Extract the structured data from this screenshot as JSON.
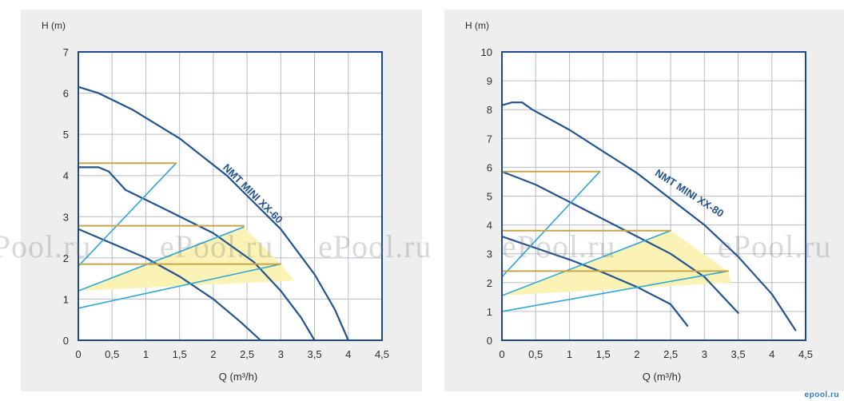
{
  "colors": {
    "frame": "#1f4b8e",
    "grid": "#b7bdc6",
    "curve": "#24548f",
    "efficiency": "#2ea6d6",
    "operating_line": "#c9a54a",
    "highlight": "#fbf3b5",
    "panel": "#eeeeef",
    "text": "#2d2d2d"
  },
  "watermark": "ePool.ru",
  "brand": "epool.ru",
  "chart_data": [
    {
      "type": "line",
      "title": "",
      "xlabel": "Q (m³/h)",
      "ylabel": "H (m)",
      "xlim": [
        0,
        4.5
      ],
      "ylim": [
        0,
        7
      ],
      "xticks": [
        "0",
        "0,5",
        "1",
        "1,5",
        "2",
        "2,5",
        "3",
        "3,5",
        "4",
        "4,5"
      ],
      "yticks": [
        "0",
        "1",
        "2",
        "3",
        "4",
        "5",
        "6",
        "7"
      ],
      "grid": true,
      "annotation": "NMT MINI XX-60",
      "series": [
        {
          "kind": "curve",
          "points": [
            [
              0,
              6.15
            ],
            [
              0.3,
              6.0
            ],
            [
              0.8,
              5.6
            ],
            [
              1.5,
              4.9
            ],
            [
              2.2,
              4.0
            ],
            [
              3.0,
              2.7
            ],
            [
              3.5,
              1.6
            ],
            [
              3.8,
              0.75
            ],
            [
              4.0,
              0.0
            ]
          ]
        },
        {
          "kind": "curve",
          "points": [
            [
              0,
              4.2
            ],
            [
              0.3,
              4.2
            ],
            [
              0.45,
              4.1
            ],
            [
              0.7,
              3.65
            ],
            [
              1.2,
              3.25
            ],
            [
              2.0,
              2.6
            ],
            [
              2.6,
              1.9
            ],
            [
              3.0,
              1.2
            ],
            [
              3.3,
              0.55
            ],
            [
              3.5,
              0.0
            ]
          ]
        },
        {
          "kind": "curve",
          "points": [
            [
              0,
              2.7
            ],
            [
              0.5,
              2.35
            ],
            [
              1.0,
              2.0
            ],
            [
              1.5,
              1.55
            ],
            [
              2.0,
              1.0
            ],
            [
              2.4,
              0.45
            ],
            [
              2.7,
              0.0
            ]
          ]
        },
        {
          "kind": "efficiency",
          "points": [
            [
              0,
              1.8
            ],
            [
              1.45,
              4.3
            ]
          ]
        },
        {
          "kind": "efficiency",
          "points": [
            [
              0,
              1.2
            ],
            [
              2.45,
              2.75
            ]
          ]
        },
        {
          "kind": "efficiency",
          "points": [
            [
              0,
              0.78
            ],
            [
              3.0,
              1.85
            ]
          ]
        },
        {
          "kind": "operating",
          "points": [
            [
              0,
              4.3
            ],
            [
              1.45,
              4.3
            ]
          ]
        },
        {
          "kind": "operating",
          "points": [
            [
              0,
              2.78
            ],
            [
              2.45,
              2.78
            ]
          ]
        },
        {
          "kind": "operating",
          "points": [
            [
              0,
              1.85
            ],
            [
              3.0,
              1.85
            ]
          ]
        }
      ],
      "highlight_area": [
        [
          0,
          1.2
        ],
        [
          2.45,
          2.75
        ],
        [
          3.0,
          1.85
        ],
        [
          3.2,
          1.45
        ],
        [
          0,
          1.2
        ]
      ]
    },
    {
      "type": "line",
      "title": "",
      "xlabel": "Q (m³/h)",
      "ylabel": "H (m)",
      "xlim": [
        0,
        4.5
      ],
      "ylim": [
        0,
        10
      ],
      "xticks": [
        "0",
        "0,5",
        "1",
        "1,5",
        "2",
        "2,5",
        "3",
        "3,5",
        "4",
        "4,5"
      ],
      "yticks": [
        "0",
        "1",
        "2",
        "3",
        "4",
        "5",
        "6",
        "7",
        "8",
        "9",
        "10"
      ],
      "grid": true,
      "annotation": "NMT MINI XX-80",
      "series": [
        {
          "kind": "curve",
          "points": [
            [
              0,
              8.15
            ],
            [
              0.15,
              8.25
            ],
            [
              0.3,
              8.25
            ],
            [
              0.45,
              8.0
            ],
            [
              1.0,
              7.3
            ],
            [
              2.0,
              5.8
            ],
            [
              3.0,
              4.0
            ],
            [
              3.5,
              2.9
            ],
            [
              4.0,
              1.6
            ],
            [
              4.35,
              0.35
            ]
          ]
        },
        {
          "kind": "curve",
          "points": [
            [
              0,
              5.85
            ],
            [
              0.5,
              5.4
            ],
            [
              1.0,
              4.8
            ],
            [
              1.5,
              4.2
            ],
            [
              2.0,
              3.6
            ],
            [
              2.5,
              3.0
            ],
            [
              3.0,
              2.2
            ],
            [
              3.5,
              0.95
            ]
          ]
        },
        {
          "kind": "curve",
          "points": [
            [
              0,
              3.6
            ],
            [
              0.5,
              3.2
            ],
            [
              1.0,
              2.8
            ],
            [
              1.5,
              2.35
            ],
            [
              2.0,
              1.85
            ],
            [
              2.5,
              1.25
            ],
            [
              2.75,
              0.5
            ]
          ]
        },
        {
          "kind": "efficiency",
          "points": [
            [
              0,
              2.2
            ],
            [
              1.45,
              5.85
            ]
          ]
        },
        {
          "kind": "efficiency",
          "points": [
            [
              0,
              1.55
            ],
            [
              2.5,
              3.8
            ]
          ]
        },
        {
          "kind": "efficiency",
          "points": [
            [
              0,
              1.0
            ],
            [
              3.35,
              2.4
            ]
          ]
        },
        {
          "kind": "operating",
          "points": [
            [
              0,
              5.85
            ],
            [
              1.45,
              5.85
            ]
          ]
        },
        {
          "kind": "operating",
          "points": [
            [
              0,
              3.8
            ],
            [
              2.5,
              3.8
            ]
          ]
        },
        {
          "kind": "operating",
          "points": [
            [
              0,
              2.4
            ],
            [
              3.35,
              2.4
            ]
          ]
        }
      ],
      "highlight_area": [
        [
          0,
          1.55
        ],
        [
          2.5,
          3.8
        ],
        [
          3.35,
          2.4
        ],
        [
          3.4,
          2.0
        ],
        [
          0,
          1.55
        ]
      ]
    }
  ]
}
